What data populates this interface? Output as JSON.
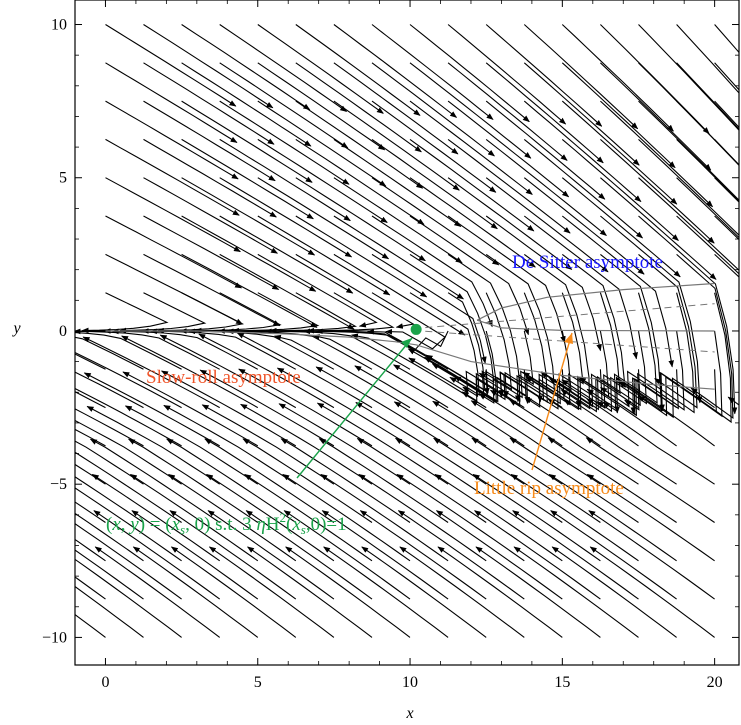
{
  "chart_data": {
    "type": "stream",
    "xlabel": "x",
    "ylabel": "y",
    "xlim": [
      -1,
      20.8
    ],
    "ylim": [
      -10.9,
      10.8
    ],
    "xticks": [
      0,
      5,
      10,
      15,
      20
    ],
    "yticks": [
      -10,
      -5,
      0,
      5,
      10
    ],
    "xtick_labels": [
      "0",
      "5",
      "10",
      "15",
      "20"
    ],
    "ytick_labels": [
      "−10",
      "−5",
      "0",
      "5",
      "10"
    ],
    "grid": false,
    "critical_point": {
      "x": 10.2,
      "y": 0.05,
      "color": "#1aa34a"
    },
    "separatrices": [
      {
        "name": "upper",
        "points": [
          [
            0,
            0
          ],
          [
            3,
            0
          ],
          [
            6,
            -0.1
          ],
          [
            8,
            -0.2
          ],
          [
            9.5,
            -0.35
          ],
          [
            10.2,
            -0.45
          ],
          [
            12,
            -1.0
          ],
          [
            15,
            -1.45
          ],
          [
            18,
            -1.75
          ],
          [
            20,
            -1.9
          ]
        ]
      },
      {
        "name": "de-sitter",
        "points": [
          [
            12.2,
            0.35
          ],
          [
            13,
            0.75
          ],
          [
            14.5,
            1.1
          ],
          [
            17,
            1.35
          ],
          [
            20,
            1.55
          ]
        ]
      },
      {
        "name": "little-rip",
        "points": [
          [
            12.2,
            0.35
          ],
          [
            13,
            0.1
          ],
          [
            15,
            0.02
          ],
          [
            20,
            0.0
          ]
        ]
      }
    ],
    "annotations": [
      {
        "id": "de-sitter",
        "text": "De Sitter asymptote",
        "color": "#1a1aff"
      },
      {
        "id": "slow-roll",
        "text": "Slow-roll asymptote",
        "color": "#f0552a"
      },
      {
        "id": "little-rip",
        "text": "Little rip asymptote",
        "color": "#f78b1a"
      },
      {
        "id": "fixed-point",
        "text": "(x, y) = (x_s, 0) s.t. 3 ηH²(x_s,0)=1",
        "color": "#1aa34a"
      }
    ]
  }
}
